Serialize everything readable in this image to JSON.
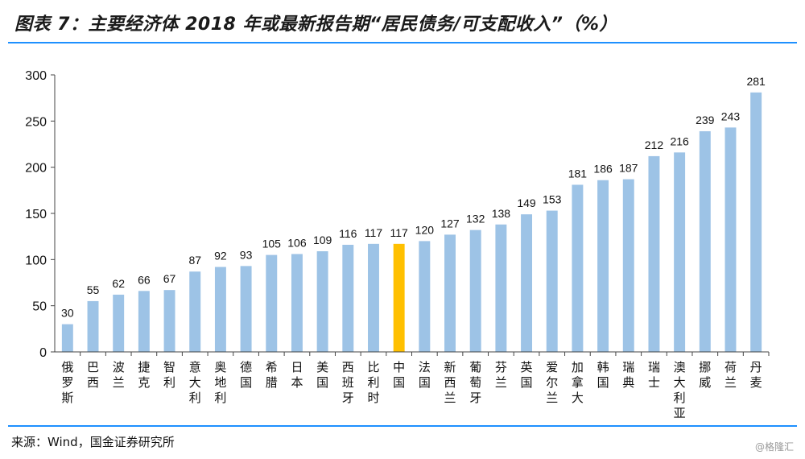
{
  "header": {
    "title": "图表 7：主要经济体 2018 年或最新报告期“居民债务/可支配收入”（%）"
  },
  "footer": {
    "source": "来源：Wind，国金证券研究所",
    "watermark": "@格隆汇"
  },
  "colors": {
    "bar": "#9dc3e6",
    "highlight": "#ffc000",
    "rule": "#1e90ff"
  },
  "chart_data": {
    "type": "bar",
    "categories": [
      "俄罗斯",
      "巴西",
      "波兰",
      "捷克",
      "智利",
      "意大利",
      "奥地利",
      "德国",
      "希腊",
      "日本",
      "美国",
      "西班牙",
      "比利时",
      "中国",
      "法国",
      "新西兰",
      "葡萄牙",
      "芬兰",
      "英国",
      "爱尔兰",
      "加拿大",
      "韩国",
      "瑞典",
      "瑞士",
      "澳大利亚",
      "挪威",
      "荷兰",
      "丹麦"
    ],
    "values": [
      30,
      55,
      62,
      66,
      67,
      87,
      92,
      93,
      105,
      106,
      109,
      116,
      117,
      117,
      120,
      127,
      132,
      138,
      149,
      153,
      181,
      186,
      187,
      212,
      216,
      239,
      243,
      281
    ],
    "highlight_category": "中国",
    "yticks": [
      0,
      50,
      100,
      150,
      200,
      250,
      300
    ],
    "ylim": [
      0,
      300
    ],
    "title": "",
    "xlabel": "",
    "ylabel": "",
    "grid": false,
    "data_labels": true
  }
}
